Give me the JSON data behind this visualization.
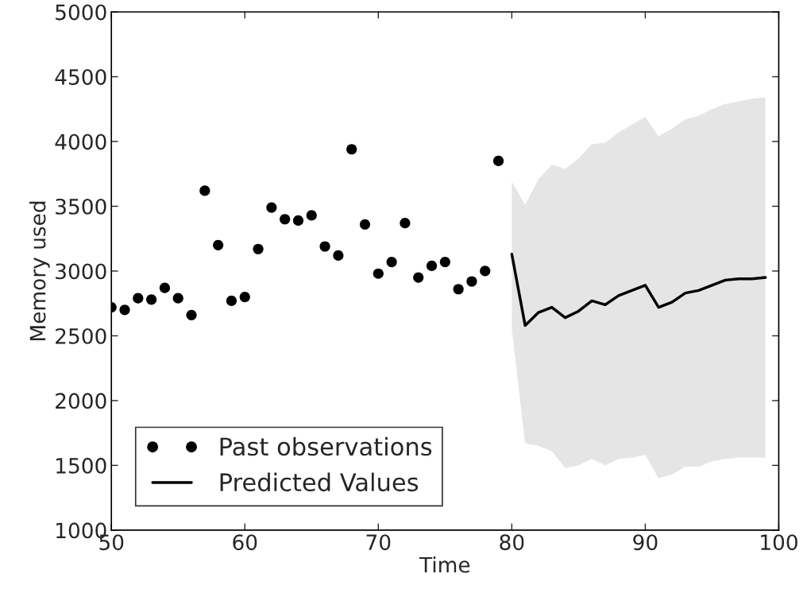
{
  "chart_data": {
    "type": "scatter",
    "xlabel": "Time",
    "ylabel": "Memory used",
    "xlim": [
      50,
      100
    ],
    "xticks": [
      50,
      60,
      70,
      80,
      90,
      100
    ],
    "ylim": [
      1000,
      5000
    ],
    "yticks": [
      1000,
      1500,
      2000,
      2500,
      3000,
      3500,
      4000,
      4500,
      5000
    ],
    "grid": false,
    "legend": "bottom left",
    "series": [
      {
        "name": "Past observations",
        "color": "#000000",
        "marker": "circle",
        "x": [
          50,
          51,
          52,
          53,
          54,
          55,
          56,
          57,
          58,
          59,
          60,
          61,
          62,
          63,
          64,
          65,
          66,
          67,
          68,
          69,
          70,
          71,
          72,
          73,
          74,
          75,
          76,
          77,
          78,
          79
        ],
        "values": [
          2720,
          2700,
          2790,
          2780,
          2870,
          2790,
          2660,
          3620,
          3200,
          2770,
          2800,
          3170,
          3490,
          3400,
          3390,
          3430,
          3190,
          3120,
          3940,
          3360,
          2980,
          3070,
          3370,
          2950,
          3040,
          3070,
          2860,
          2920,
          3000,
          3850
        ]
      },
      {
        "name": "Predicted Values",
        "type": "line",
        "color": "#000000",
        "line_style": "solid",
        "x": [
          80,
          81,
          82,
          83,
          84,
          85,
          86,
          87,
          88,
          89,
          90,
          91,
          92,
          93,
          94,
          95,
          96,
          97,
          98,
          99
        ],
        "values": [
          3130,
          2580,
          2680,
          2720,
          2640,
          2690,
          2770,
          2740,
          2810,
          2850,
          2890,
          2720,
          2760,
          2830,
          2850,
          2890,
          2930,
          2940,
          2940,
          2950
        ],
        "upper": [
          3690,
          3510,
          3710,
          3820,
          3790,
          3870,
          3980,
          3990,
          4070,
          4130,
          4190,
          4040,
          4100,
          4170,
          4200,
          4250,
          4290,
          4310,
          4330,
          4340
        ],
        "lower": [
          2550,
          1670,
          1650,
          1610,
          1480,
          1500,
          1550,
          1500,
          1550,
          1560,
          1580,
          1400,
          1430,
          1490,
          1490,
          1530,
          1550,
          1560,
          1560,
          1560
        ]
      }
    ]
  }
}
